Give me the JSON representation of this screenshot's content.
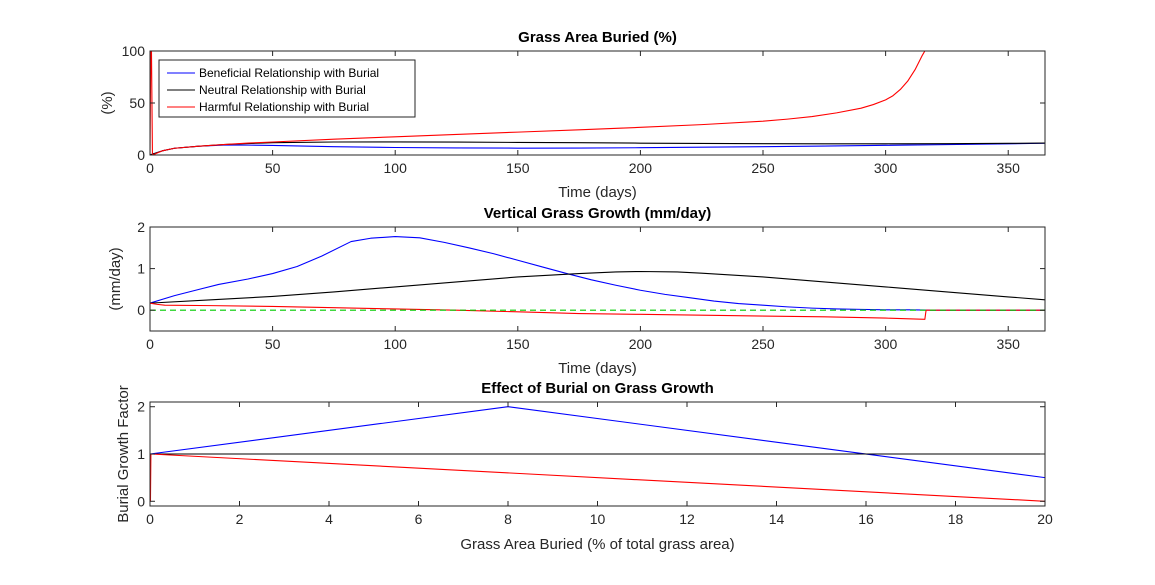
{
  "chart_data": [
    {
      "type": "line",
      "title": "Grass Area Buried (%)",
      "xlabel": "Time (days)",
      "ylabel": "(%)",
      "xlim": [
        0,
        365
      ],
      "ylim": [
        0,
        100
      ],
      "xticks": [
        0,
        50,
        100,
        150,
        200,
        250,
        300,
        350
      ],
      "yticks": [
        0,
        50,
        100
      ],
      "grid": false,
      "legend": "top-left",
      "series": [
        {
          "name": "Beneficial Relationship with Burial",
          "color": "#0000ff",
          "x": [
            0,
            5,
            10,
            20,
            30,
            40,
            50,
            75,
            100,
            125,
            150,
            175,
            200,
            225,
            250,
            275,
            300,
            325,
            350,
            365
          ],
          "y": [
            0,
            4,
            6.5,
            8.5,
            9.5,
            9.5,
            9.2,
            8,
            7.2,
            6.8,
            6.6,
            6.7,
            7,
            7.5,
            8,
            8.6,
            9.3,
            10,
            10.8,
            11.3
          ]
        },
        {
          "name": "Neutral Relationship with Burial",
          "color": "#000000",
          "x": [
            0,
            5,
            10,
            20,
            30,
            40,
            50,
            75,
            100,
            125,
            150,
            175,
            200,
            225,
            250,
            275,
            300,
            325,
            350,
            365
          ],
          "y": [
            0,
            4,
            6.5,
            8.5,
            10,
            11,
            11.8,
            12.5,
            12.6,
            12.4,
            12.1,
            11.8,
            11.4,
            11.1,
            10.9,
            10.8,
            10.8,
            10.9,
            11.2,
            11.5
          ]
        },
        {
          "name": "Harmful Relationship with Burial",
          "color": "#ff0000",
          "x": [
            0,
            0.3,
            0.6,
            1,
            5,
            10,
            20,
            30,
            40,
            50,
            75,
            100,
            125,
            150,
            175,
            200,
            225,
            250,
            260,
            270,
            280,
            290,
            295,
            300,
            303,
            306,
            309,
            312,
            315,
            316,
            320,
            330,
            340,
            350,
            365
          ],
          "y": [
            0,
            100,
            100,
            0,
            4,
            6.5,
            8.5,
            10,
            11.5,
            12.5,
            15.2,
            17.5,
            19.8,
            22,
            24.2,
            26.6,
            29.2,
            32.5,
            34.5,
            37,
            40.5,
            45,
            48.5,
            53,
            57,
            63,
            71,
            82,
            96,
            100,
            100,
            100,
            100,
            100,
            100
          ]
        }
      ]
    },
    {
      "type": "line",
      "title": "Vertical Grass Growth (mm/day)",
      "xlabel": "Time (days)",
      "ylabel": "(mm/day)",
      "xlim": [
        0,
        365
      ],
      "ylim": [
        -0.5,
        2
      ],
      "xticks": [
        0,
        50,
        100,
        150,
        200,
        250,
        300,
        350
      ],
      "yticks": [
        0,
        1,
        2
      ],
      "grid": false,
      "series": [
        {
          "color": "#0000ff",
          "x": [
            0,
            10,
            20,
            28,
            40,
            50,
            60,
            70,
            82,
            90,
            100,
            110,
            120,
            130,
            140,
            150,
            160,
            170,
            180,
            190,
            200,
            210,
            220,
            230,
            240,
            250,
            260,
            270,
            280,
            290,
            300,
            310,
            320,
            330,
            340,
            350,
            365
          ],
          "y": [
            0.17,
            0.35,
            0.5,
            0.62,
            0.75,
            0.88,
            1.05,
            1.3,
            1.65,
            1.73,
            1.77,
            1.74,
            1.63,
            1.5,
            1.36,
            1.2,
            1.04,
            0.88,
            0.73,
            0.6,
            0.48,
            0.38,
            0.3,
            0.22,
            0.16,
            0.12,
            0.08,
            0.05,
            0.03,
            0.02,
            0.01,
            0.01,
            0,
            0,
            0,
            0,
            0
          ]
        },
        {
          "color": "#000000",
          "x": [
            0,
            25,
            50,
            75,
            100,
            125,
            150,
            175,
            190,
            200,
            215,
            225,
            250,
            275,
            300,
            325,
            350,
            365
          ],
          "y": [
            0.17,
            0.25,
            0.33,
            0.44,
            0.56,
            0.68,
            0.8,
            0.88,
            0.92,
            0.93,
            0.92,
            0.89,
            0.8,
            0.68,
            0.56,
            0.44,
            0.32,
            0.25
          ]
        },
        {
          "color": "#ff0000",
          "x": [
            0,
            3,
            6,
            25,
            50,
            75,
            100,
            125,
            150,
            175,
            200,
            225,
            250,
            275,
            300,
            316,
            316.5,
            320,
            340,
            365
          ],
          "y": [
            0.17,
            0.14,
            0.12,
            0.11,
            0.09,
            0.06,
            0.03,
            0,
            -0.04,
            -0.08,
            -0.1,
            -0.12,
            -0.14,
            -0.16,
            -0.19,
            -0.22,
            0,
            0,
            0,
            0
          ]
        },
        {
          "color": "#00cc00",
          "dashed": true,
          "x": [
            0,
            365
          ],
          "y": [
            0,
            0
          ]
        }
      ]
    },
    {
      "type": "line",
      "title": "Effect of Burial on Grass Growth",
      "xlabel": "Grass Area Buried (% of total grass area)",
      "ylabel": "Burial Growth Factor",
      "xlim": [
        0,
        20
      ],
      "ylim": [
        -0.1,
        2.1
      ],
      "xticks": [
        0,
        2,
        4,
        6,
        8,
        10,
        12,
        14,
        16,
        18,
        20
      ],
      "yticks": [
        0,
        1,
        2
      ],
      "grid": false,
      "series": [
        {
          "color": "#0000ff",
          "x": [
            0,
            8,
            20
          ],
          "y": [
            1,
            2,
            0.5
          ]
        },
        {
          "color": "#000000",
          "x": [
            0,
            20
          ],
          "y": [
            1,
            1
          ]
        },
        {
          "color": "#ff0000",
          "x": [
            0,
            0.01,
            0.02,
            20
          ],
          "y": [
            0,
            0,
            1,
            0
          ]
        }
      ]
    }
  ]
}
